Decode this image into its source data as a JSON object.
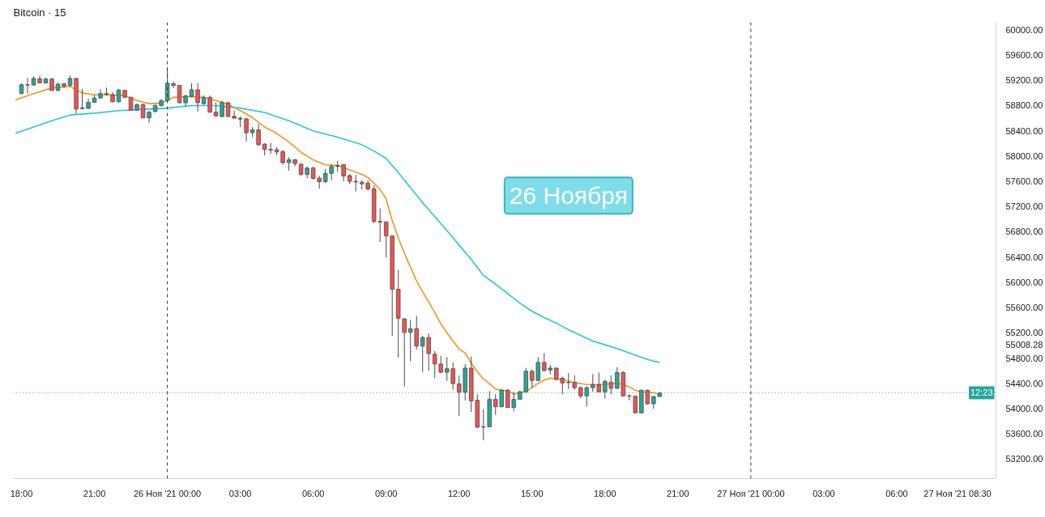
{
  "chart_data": {
    "type": "candlestick",
    "title": "Bitcoin · 15",
    "x": [
      "2021-11-25T18:00",
      "2021-11-25T18:15",
      "2021-11-25T18:30",
      "2021-11-25T18:45",
      "2021-11-25T19:00",
      "2021-11-25T19:15",
      "2021-11-25T19:30",
      "2021-11-25T19:45",
      "2021-11-25T20:00",
      "2021-11-25T20:15",
      "2021-11-25T20:30",
      "2021-11-25T20:45",
      "2021-11-25T21:00",
      "2021-11-25T21:15",
      "2021-11-25T21:30",
      "2021-11-25T21:45",
      "2021-11-25T22:00",
      "2021-11-25T22:15",
      "2021-11-25T22:30",
      "2021-11-25T22:45",
      "2021-11-25T23:00",
      "2021-11-25T23:15",
      "2021-11-25T23:30",
      "2021-11-25T23:45",
      "2021-11-26T00:00",
      "2021-11-26T00:15",
      "2021-11-26T00:30",
      "2021-11-26T00:45",
      "2021-11-26T01:00",
      "2021-11-26T01:15",
      "2021-11-26T01:30",
      "2021-11-26T01:45",
      "2021-11-26T02:00",
      "2021-11-26T02:15",
      "2021-11-26T02:30",
      "2021-11-26T02:45",
      "2021-11-26T03:00",
      "2021-11-26T03:15",
      "2021-11-26T03:30",
      "2021-11-26T03:45",
      "2021-11-26T04:00",
      "2021-11-26T04:15",
      "2021-11-26T04:30",
      "2021-11-26T04:45",
      "2021-11-26T05:00",
      "2021-11-26T05:15",
      "2021-11-26T05:30",
      "2021-11-26T05:45",
      "2021-11-26T06:00",
      "2021-11-26T06:15",
      "2021-11-26T06:30",
      "2021-11-26T06:45",
      "2021-11-26T07:00",
      "2021-11-26T07:15",
      "2021-11-26T07:30",
      "2021-11-26T07:45",
      "2021-11-26T08:00",
      "2021-11-26T08:15",
      "2021-11-26T08:30",
      "2021-11-26T08:45",
      "2021-11-26T09:00",
      "2021-11-26T09:15",
      "2021-11-26T09:30",
      "2021-11-26T09:45",
      "2021-11-26T10:00",
      "2021-11-26T10:15",
      "2021-11-26T10:30",
      "2021-11-26T10:45",
      "2021-11-26T11:00",
      "2021-11-26T11:15",
      "2021-11-26T11:30",
      "2021-11-26T11:45",
      "2021-11-26T12:00",
      "2021-11-26T12:15",
      "2021-11-26T12:30",
      "2021-11-26T12:45",
      "2021-11-26T13:00",
      "2021-11-26T13:15",
      "2021-11-26T13:30",
      "2021-11-26T13:45",
      "2021-11-26T14:00",
      "2021-11-26T14:15",
      "2021-11-26T14:30",
      "2021-11-26T14:45",
      "2021-11-26T15:00",
      "2021-11-26T15:15",
      "2021-11-26T15:30",
      "2021-11-26T15:45",
      "2021-11-26T16:00",
      "2021-11-26T16:15",
      "2021-11-26T16:30",
      "2021-11-26T16:45",
      "2021-11-26T17:00",
      "2021-11-26T17:15",
      "2021-11-26T17:30",
      "2021-11-26T17:45",
      "2021-11-26T18:00",
      "2021-11-26T18:15",
      "2021-11-26T18:30",
      "2021-11-26T18:45",
      "2021-11-26T19:00",
      "2021-11-26T19:15",
      "2021-11-26T19:30",
      "2021-11-26T19:45",
      "2021-11-26T20:00",
      "2021-11-26T20:15"
    ],
    "ohlc": [
      [
        58990,
        59150,
        58980,
        59130
      ],
      [
        59125,
        59240,
        58990,
        59130
      ],
      [
        59125,
        59260,
        59120,
        59230
      ],
      [
        59225,
        59275,
        59155,
        59160
      ],
      [
        59160,
        59240,
        59145,
        59220
      ],
      [
        59220,
        59240,
        59030,
        59040
      ],
      [
        59040,
        59160,
        59025,
        59140
      ],
      [
        59145,
        59155,
        59075,
        59110
      ],
      [
        59120,
        59275,
        59100,
        59230
      ],
      [
        59230,
        59240,
        58670,
        58745
      ],
      [
        58765,
        59065,
        58740,
        58750
      ],
      [
        58755,
        58910,
        58745,
        58850
      ],
      [
        58850,
        58965,
        58845,
        58920
      ],
      [
        58920,
        59060,
        58910,
        58990
      ],
      [
        58990,
        59085,
        58960,
        58975
      ],
      [
        58970,
        59015,
        58850,
        58860
      ],
      [
        58860,
        59060,
        58850,
        59045
      ],
      [
        59040,
        59050,
        58920,
        58930
      ],
      [
        58930,
        58940,
        58715,
        58725
      ],
      [
        58725,
        58830,
        58715,
        58815
      ],
      [
        58815,
        58830,
        58600,
        58605
      ],
      [
        58605,
        58715,
        58525,
        58695
      ],
      [
        58705,
        58825,
        58695,
        58800
      ],
      [
        58800,
        58905,
        58785,
        58875
      ],
      [
        58875,
        59410,
        58865,
        59155
      ],
      [
        59145,
        59180,
        59075,
        59120
      ],
      [
        59120,
        59125,
        58835,
        58845
      ],
      [
        58845,
        58970,
        58785,
        58955
      ],
      [
        58945,
        59155,
        58930,
        59050
      ],
      [
        59050,
        59155,
        58705,
        58845
      ],
      [
        58830,
        58960,
        58810,
        58930
      ],
      [
        58930,
        58960,
        58690,
        58695
      ],
      [
        58695,
        58850,
        58625,
        58635
      ],
      [
        58625,
        58875,
        58615,
        58850
      ],
      [
        58845,
        58860,
        58615,
        58625
      ],
      [
        58630,
        58720,
        58590,
        58600
      ],
      [
        58600,
        58630,
        58460,
        58585
      ],
      [
        58590,
        58600,
        58230,
        58370
      ],
      [
        58370,
        58460,
        58300,
        58415
      ],
      [
        58415,
        58510,
        58160,
        58180
      ],
      [
        58190,
        58200,
        58010,
        58105
      ],
      [
        58105,
        58210,
        58030,
        58095
      ],
      [
        58100,
        58140,
        58015,
        58065
      ],
      [
        58070,
        58095,
        57865,
        57895
      ],
      [
        57895,
        57985,
        57770,
        57940
      ],
      [
        57940,
        57955,
        57835,
        57880
      ],
      [
        57870,
        57890,
        57685,
        57710
      ],
      [
        57710,
        57835,
        57650,
        57810
      ],
      [
        57810,
        57835,
        57630,
        57645
      ],
      [
        57650,
        57690,
        57485,
        57595
      ],
      [
        57595,
        57795,
        57570,
        57725
      ],
      [
        57725,
        57870,
        57615,
        57835
      ],
      [
        57835,
        57925,
        57750,
        57850
      ],
      [
        57865,
        57870,
        57600,
        57685
      ],
      [
        57690,
        57715,
        57555,
        57600
      ],
      [
        57600,
        57700,
        57440,
        57590
      ],
      [
        57585,
        57620,
        57470,
        57560
      ],
      [
        57570,
        57620,
        57455,
        57480
      ],
      [
        57480,
        57535,
        56935,
        56965
      ],
      [
        56965,
        57170,
        56640,
        56955
      ],
      [
        56955,
        56965,
        56395,
        56735
      ],
      [
        56735,
        56735,
        55150,
        55890
      ],
      [
        55890,
        56195,
        54805,
        55430
      ],
      [
        55420,
        55435,
        54350,
        55205
      ],
      [
        55205,
        55405,
        54750,
        55265
      ],
      [
        55265,
        55470,
        54935,
        54990
      ],
      [
        54990,
        55150,
        54575,
        55125
      ],
      [
        55125,
        55190,
        54600,
        54870
      ],
      [
        54860,
        54910,
        54480,
        54705
      ],
      [
        54705,
        54835,
        54560,
        54575
      ],
      [
        54575,
        54815,
        54440,
        54630
      ],
      [
        54630,
        54730,
        54300,
        54395
      ],
      [
        54390,
        54525,
        53880,
        54260
      ],
      [
        54260,
        54705,
        54130,
        54640
      ],
      [
        54640,
        54825,
        53945,
        54120
      ],
      [
        54130,
        54225,
        53685,
        53705
      ],
      [
        53710,
        53985,
        53500,
        53705
      ],
      [
        53710,
        54275,
        53700,
        54145
      ],
      [
        54145,
        54230,
        53900,
        54030
      ],
      [
        54030,
        54310,
        54015,
        54290
      ],
      [
        54290,
        54310,
        54010,
        54015
      ],
      [
        54015,
        54265,
        53955,
        54145
      ],
      [
        54145,
        54285,
        54140,
        54265
      ],
      [
        54265,
        54645,
        54245,
        54590
      ],
      [
        54590,
        54620,
        54330,
        54445
      ],
      [
        54445,
        54815,
        54430,
        54730
      ],
      [
        54730,
        54880,
        54590,
        54600
      ],
      [
        54610,
        54690,
        54545,
        54640
      ],
      [
        54640,
        54655,
        54445,
        54460
      ],
      [
        54480,
        54505,
        54225,
        54405
      ],
      [
        54410,
        54560,
        54310,
        54415
      ],
      [
        54415,
        54525,
        54300,
        54330
      ],
      [
        54330,
        54355,
        54160,
        54200
      ],
      [
        54200,
        54355,
        54030,
        54330
      ],
      [
        54330,
        54545,
        54265,
        54375
      ],
      [
        54375,
        54570,
        54260,
        54265
      ],
      [
        54265,
        54460,
        54160,
        54430
      ],
      [
        54415,
        54525,
        54225,
        54320
      ],
      [
        54320,
        54655,
        54310,
        54570
      ],
      [
        54570,
        54590,
        54190,
        54200
      ],
      [
        54200,
        54225,
        54130,
        54195
      ],
      [
        54195,
        54205,
        53925,
        53930
      ],
      [
        53930,
        54300,
        53925,
        54290
      ],
      [
        54290,
        54300,
        54060,
        54075
      ],
      [
        54075,
        54200,
        53995,
        54190
      ],
      [
        54190,
        54265,
        54180,
        54245
      ]
    ],
    "colors": [
      "#26a69a",
      "#26a69a",
      "#26a69a",
      "#ef5350",
      "#26a69a",
      "#ef5350",
      "#26a69a",
      "#ef5350",
      "#26a69a",
      "#ef5350",
      "#ef5350",
      "#26a69a",
      "#26a69a",
      "#26a69a",
      "#ef5350",
      "#ef5350",
      "#26a69a",
      "#ef5350",
      "#ef5350",
      "#26a69a",
      "#ef5350",
      "#26a69a",
      "#26a69a",
      "#26a69a",
      "#26a69a",
      "#ef5350",
      "#ef5350",
      "#26a69a",
      "#26a69a",
      "#ef5350",
      "#26a69a",
      "#ef5350",
      "#ef5350",
      "#26a69a",
      "#ef5350",
      "#ef5350",
      "#ef5350",
      "#ef5350",
      "#26a69a",
      "#ef5350",
      "#ef5350",
      "#ef5350",
      "#ef5350",
      "#ef5350",
      "#26a69a",
      "#ef5350",
      "#ef5350",
      "#26a69a",
      "#ef5350",
      "#ef5350",
      "#26a69a",
      "#26a69a",
      "#26a69a",
      "#ef5350",
      "#ef5350",
      "#ef5350",
      "#ef5350",
      "#ef5350",
      "#ef5350",
      "#ef5350",
      "#ef5350",
      "#ef5350",
      "#ef5350",
      "#ef5350",
      "#26a69a",
      "#ef5350",
      "#26a69a",
      "#ef5350",
      "#ef5350",
      "#ef5350",
      "#26a69a",
      "#ef5350",
      "#ef5350",
      "#26a69a",
      "#ef5350",
      "#ef5350",
      "#ef5350",
      "#26a69a",
      "#ef5350",
      "#26a69a",
      "#ef5350",
      "#26a69a",
      "#26a69a",
      "#26a69a",
      "#ef5350",
      "#26a69a",
      "#ef5350",
      "#26a69a",
      "#ef5350",
      "#ef5350",
      "#26a69a",
      "#ef5350",
      "#ef5350",
      "#26a69a",
      "#26a69a",
      "#ef5350",
      "#26a69a",
      "#ef5350",
      "#26a69a",
      "#ef5350",
      "#ef5350",
      "#ef5350",
      "#26a69a",
      "#ef5350",
      "#26a69a",
      "#26a69a"
    ],
    "series": [
      {
        "type": "line",
        "color": "#f7931e",
        "x": [
          "2021-11-25T17:45",
          "2021-11-25T18:30",
          "2021-11-25T19:15",
          "2021-11-25T20:00",
          "2021-11-25T20:30",
          "2021-11-25T21:00",
          "2021-11-25T21:45",
          "2021-11-25T22:15",
          "2021-11-25T22:45",
          "2021-11-25T23:15",
          "2021-11-25T23:45",
          "2021-11-26T00:15",
          "2021-11-26T00:45",
          "2021-11-26T01:30",
          "2021-11-26T02:00",
          "2021-11-26T02:30",
          "2021-11-26T03:00",
          "2021-11-26T03:30",
          "2021-11-26T04:00",
          "2021-11-26T04:30",
          "2021-11-26T05:00",
          "2021-11-26T05:30",
          "2021-11-26T06:00",
          "2021-11-26T06:30",
          "2021-11-26T07:00",
          "2021-11-26T07:30",
          "2021-11-26T08:00",
          "2021-11-26T08:15",
          "2021-11-26T08:30",
          "2021-11-26T08:45",
          "2021-11-26T09:00",
          "2021-11-26T09:15",
          "2021-11-26T09:30",
          "2021-11-26T09:45",
          "2021-11-26T10:00",
          "2021-11-26T10:15",
          "2021-11-26T10:30",
          "2021-11-26T10:45",
          "2021-11-26T11:00",
          "2021-11-26T11:15",
          "2021-11-26T11:30",
          "2021-11-26T11:45",
          "2021-11-26T12:00",
          "2021-11-26T12:15",
          "2021-11-26T12:30",
          "2021-11-26T12:45",
          "2021-11-26T13:00",
          "2021-11-26T13:15",
          "2021-11-26T13:30",
          "2021-11-26T13:45",
          "2021-11-26T14:00",
          "2021-11-26T14:15",
          "2021-11-26T14:30",
          "2021-11-26T14:45",
          "2021-11-26T15:00",
          "2021-11-26T15:15",
          "2021-11-26T15:30",
          "2021-11-26T15:45",
          "2021-11-26T16:15",
          "2021-11-26T16:45",
          "2021-11-26T17:15",
          "2021-11-26T17:45",
          "2021-11-26T18:15",
          "2021-11-26T18:30",
          "2021-11-26T18:45",
          "2021-11-26T19:00",
          "2021-11-26T19:15",
          "2021-11-26T19:30",
          "2021-11-26T19:45",
          "2021-11-26T20:00",
          "2021-11-26T20:15"
        ],
        "values": [
          58890,
          58990,
          59080,
          59100,
          59000,
          58970,
          58970,
          58960,
          58880,
          58830,
          58840,
          58930,
          58940,
          58930,
          58880,
          58820,
          58720,
          58610,
          58460,
          58360,
          58220,
          58060,
          57940,
          57860,
          57850,
          57780,
          57710,
          57660,
          57570,
          57470,
          57320,
          56980,
          56700,
          56460,
          56240,
          56020,
          55850,
          55690,
          55520,
          55340,
          55200,
          55070,
          54940,
          54880,
          54720,
          54580,
          54470,
          54390,
          54310,
          54290,
          54280,
          54230,
          54250,
          54270,
          54330,
          54400,
          54450,
          54480,
          54460,
          54410,
          54380,
          54380,
          54390,
          54400,
          54380,
          54340,
          54290,
          54260,
          54260,
          54250,
          54230
        ]
      },
      {
        "type": "line",
        "color": "#26c6da",
        "x": [
          "2021-11-25T17:45",
          "2021-11-25T18:30",
          "2021-11-25T19:15",
          "2021-11-25T20:00",
          "2021-11-25T21:00",
          "2021-11-25T22:00",
          "2021-11-25T23:00",
          "2021-11-26T00:00",
          "2021-11-26T01:00",
          "2021-11-26T02:00",
          "2021-11-26T03:00",
          "2021-11-26T04:00",
          "2021-11-26T05:00",
          "2021-11-26T06:00",
          "2021-11-26T07:00",
          "2021-11-26T08:00",
          "2021-11-26T08:30",
          "2021-11-26T09:00",
          "2021-11-26T09:30",
          "2021-11-26T10:00",
          "2021-11-26T10:30",
          "2021-11-26T11:00",
          "2021-11-26T11:30",
          "2021-11-26T12:00",
          "2021-11-26T12:30",
          "2021-11-26T13:00",
          "2021-11-26T13:30",
          "2021-11-26T14:00",
          "2021-11-26T14:30",
          "2021-11-26T15:00",
          "2021-11-26T15:30",
          "2021-11-26T16:00",
          "2021-11-26T16:30",
          "2021-11-26T17:00",
          "2021-11-26T17:30",
          "2021-11-26T18:00",
          "2021-11-26T18:30",
          "2021-11-26T19:00",
          "2021-11-26T19:30",
          "2021-11-26T20:00",
          "2021-11-26T20:15"
        ],
        "values": [
          58360,
          58460,
          58560,
          58650,
          58680,
          58720,
          58740,
          58760,
          58800,
          58800,
          58760,
          58690,
          58560,
          58400,
          58300,
          58180,
          58080,
          57960,
          57740,
          57500,
          57260,
          57040,
          56820,
          56590,
          56360,
          56110,
          55970,
          55820,
          55670,
          55540,
          55440,
          55350,
          55250,
          55160,
          55070,
          55010,
          54950,
          54880,
          54810,
          54750,
          54730
        ]
      }
    ],
    "xlim": [
      "2021-11-25T17:40",
      "2021-11-27T10:05"
    ],
    "ylim": [
      52890,
      60120
    ],
    "xticks": [
      {
        "value": "2021-11-25T18:00",
        "label": "18:00"
      },
      {
        "value": "2021-11-25T21:00",
        "label": "21:00"
      },
      {
        "value": "2021-11-26T00:00",
        "label": "26 Ноя '21 00:00"
      },
      {
        "value": "2021-11-26T03:00",
        "label": "03:00"
      },
      {
        "value": "2021-11-26T06:00",
        "label": "06:00"
      },
      {
        "value": "2021-11-26T09:00",
        "label": "09:00"
      },
      {
        "value": "2021-11-26T12:00",
        "label": "12:00"
      },
      {
        "value": "2021-11-26T15:00",
        "label": "15:00"
      },
      {
        "value": "2021-11-26T18:00",
        "label": "18:00"
      },
      {
        "value": "2021-11-26T21:00",
        "label": "21:00"
      },
      {
        "value": "2021-11-27T00:00",
        "label": "27 Ноя '21 00:00"
      },
      {
        "value": "2021-11-27T03:00",
        "label": "03:00"
      },
      {
        "value": "2021-11-27T06:00",
        "label": "06:00"
      },
      {
        "value": "2021-11-27T08:30",
        "label": "27 Ноя '21 08:30"
      }
    ],
    "yticks": [
      {
        "value": 53200,
        "label": "53200.00"
      },
      {
        "value": 53600,
        "label": "53600.00"
      },
      {
        "value": 54000,
        "label": "54000.00"
      },
      {
        "value": 54400,
        "label": "54400.00"
      },
      {
        "value": 54800,
        "label": "54800.00"
      },
      {
        "value": 55008.28,
        "label": "55008.28"
      },
      {
        "value": 55200,
        "label": "55200.00"
      },
      {
        "value": 55600,
        "label": "55600.00"
      },
      {
        "value": 56000,
        "label": "56000.00"
      },
      {
        "value": 56400,
        "label": "56400.00"
      },
      {
        "value": 56800,
        "label": "56800.00"
      },
      {
        "value": 57200,
        "label": "57200.00"
      },
      {
        "value": 57600,
        "label": "57600.00"
      },
      {
        "value": 58000,
        "label": "58000.00"
      },
      {
        "value": 58400,
        "label": "58400.00"
      },
      {
        "value": 58800,
        "label": "58800.00"
      },
      {
        "value": 59200,
        "label": "59200.00"
      },
      {
        "value": 59600,
        "label": "59600.00"
      },
      {
        "value": 60000,
        "label": "60000.00"
      }
    ],
    "ref_lines": [
      {
        "axis": "x",
        "value": "2021-11-26T00:00",
        "color": "#333333",
        "line_style": "dashed"
      },
      {
        "axis": "x",
        "value": "2021-11-27T00:00",
        "color": "#333333",
        "line_style": "dashed"
      },
      {
        "axis": "y",
        "value": 54250,
        "color": "#26a69a",
        "line_style": "dotted"
      }
    ],
    "annotations": [
      "26 Ноября",
      {
        "text": "12:23",
        "y": 54250
      }
    ],
    "grid": false
  }
}
